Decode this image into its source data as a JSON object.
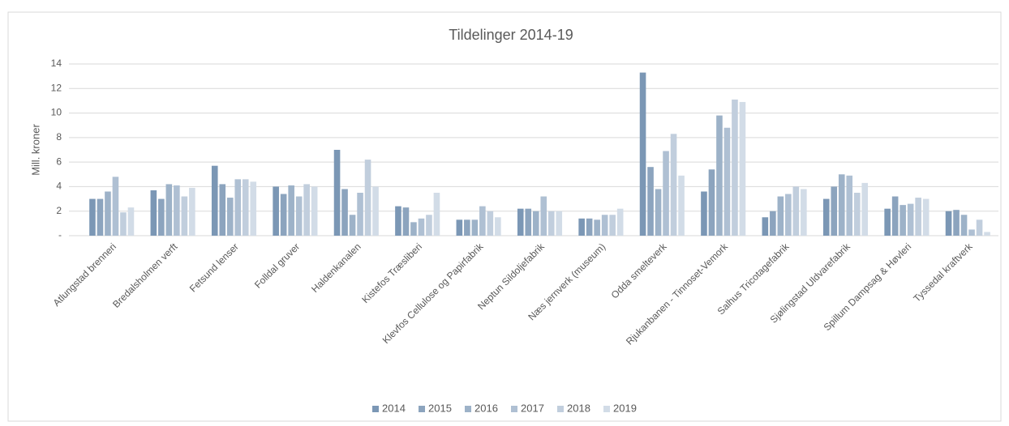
{
  "chart_data": {
    "type": "bar",
    "title": "Tildelinger 2014-19",
    "y_label": "Mill. kroner",
    "categories": [
      "Atlungstad brenneri",
      "Bredalsholmen verft",
      "Fetsund lenser",
      "Folldal gruver",
      "Haldenkanalen",
      "Kistefos Træsliberi",
      "Klevfos Cellulose og Papirfabrik",
      "Neptun Sildoljefabrik",
      "Næs jernverk (museum)",
      "Odda smelteverk",
      "Rjukanbanen - Tinnoset-Vemork",
      "Salhus Tricotagefabrik",
      "Sjølingstad Uldvarefabrik",
      "Spillum Dampsag & Høvleri",
      "Tyssedal kraftverk"
    ],
    "series": [
      {
        "name": "2014",
        "color": "#7b97b5",
        "values": [
          3.0,
          3.7,
          5.7,
          4.0,
          7.0,
          2.4,
          1.3,
          2.2,
          1.4,
          13.3,
          3.6,
          1.5,
          3.0,
          2.2,
          2.0
        ]
      },
      {
        "name": "2015",
        "color": "#8ca4be",
        "values": [
          3.0,
          3.0,
          4.2,
          3.4,
          3.8,
          2.3,
          1.3,
          2.2,
          1.4,
          5.6,
          5.4,
          2.0,
          4.0,
          3.2,
          2.1
        ]
      },
      {
        "name": "2016",
        "color": "#9db2c8",
        "values": [
          3.6,
          4.2,
          3.1,
          4.1,
          1.7,
          1.1,
          1.3,
          2.0,
          1.3,
          3.8,
          9.8,
          3.2,
          5.0,
          2.5,
          1.7
        ]
      },
      {
        "name": "2017",
        "color": "#afc0d3",
        "values": [
          4.8,
          4.1,
          4.6,
          3.2,
          3.5,
          1.4,
          2.4,
          3.2,
          1.7,
          6.9,
          8.8,
          3.4,
          4.9,
          2.6,
          0.5
        ]
      },
      {
        "name": "2018",
        "color": "#c1cedd",
        "values": [
          1.9,
          3.2,
          4.6,
          4.2,
          6.2,
          1.7,
          2.0,
          2.0,
          1.7,
          8.3,
          11.1,
          4.0,
          3.5,
          3.1,
          1.3
        ]
      },
      {
        "name": "2019",
        "color": "#d2dce7",
        "values": [
          2.3,
          3.9,
          4.4,
          4.0,
          4.0,
          3.5,
          1.5,
          2.0,
          2.2,
          4.9,
          10.9,
          3.8,
          4.3,
          3.0,
          0.3
        ]
      }
    ],
    "ylim": [
      0,
      14
    ],
    "yticks": [
      {
        "value": 0,
        "label": "-"
      },
      2,
      4,
      6,
      8,
      10,
      12,
      14
    ],
    "grid": true,
    "legend": "bottom"
  }
}
